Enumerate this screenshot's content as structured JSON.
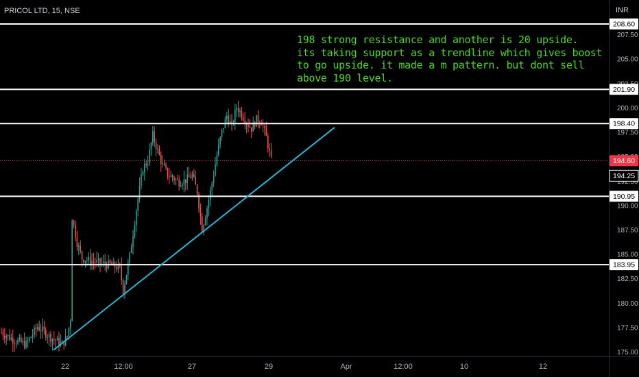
{
  "header": {
    "symbol": "PRICOL LTD, 15, NSE",
    "currency": "INR"
  },
  "note_lines": [
    "198 strong resistance and another is 20 upside.",
    "its taking support as a trendline which gives boost",
    "to go upside. it made a m pattern. but dont sell",
    "above 190 level."
  ],
  "colors": {
    "background": "#000000",
    "up": "#26a69a",
    "down": "#ef5350",
    "trendline": "#29b6d6",
    "level_line": "#ffffff",
    "note_text": "#4cd81f",
    "current_price": "#f23645"
  },
  "chart_data": {
    "type": "line",
    "title": "PRICOL LTD, 15, NSE",
    "ylabel": "INR",
    "ylim": [
      174.9,
      210.0
    ],
    "y_ticks": [
      "207.50",
      "205.00",
      "202.50",
      "200.00",
      "197.50",
      "195.00",
      "192.50",
      "190.00",
      "187.50",
      "185.00",
      "182.50",
      "180.00",
      "177.50",
      "175.00"
    ],
    "x_ticks": [
      "22",
      "12:00",
      "27",
      "29",
      "Apr",
      "12:00",
      "10",
      "12"
    ],
    "horizontal_levels": [
      {
        "value": 208.6,
        "label": "208.60"
      },
      {
        "value": 201.9,
        "label": "201.90"
      },
      {
        "value": 198.4,
        "label": "198.40"
      },
      {
        "value": 190.95,
        "label": "190.95"
      },
      {
        "value": 183.95,
        "label": "183.95"
      }
    ],
    "current_price": {
      "value": 194.6,
      "label": "194.60"
    },
    "secondary_price": {
      "value": 194.25,
      "label": "194.25"
    },
    "trendline": {
      "from": {
        "bar": 0,
        "price": 175.2
      },
      "to": {
        "bar": 160,
        "price": 198.0
      }
    },
    "price_path": [
      [
        0,
        177.0
      ],
      [
        8,
        176.2
      ],
      [
        15,
        175.8
      ],
      [
        22,
        177.6
      ],
      [
        30,
        176.5
      ],
      [
        37,
        175.8
      ],
      [
        40,
        176.6
      ],
      [
        42,
        178.4
      ],
      [
        43,
        188.8
      ],
      [
        46,
        186.2
      ],
      [
        49,
        184.6
      ],
      [
        55,
        184.3
      ],
      [
        60,
        184.1
      ],
      [
        66,
        183.9
      ],
      [
        72,
        183.6
      ],
      [
        74,
        181.3
      ],
      [
        78,
        184.8
      ],
      [
        82,
        189.6
      ],
      [
        86,
        193.8
      ],
      [
        89,
        194.6
      ],
      [
        92,
        197.2
      ],
      [
        95,
        195.6
      ],
      [
        98,
        194.1
      ],
      [
        101,
        193.2
      ],
      [
        104,
        192.9
      ],
      [
        108,
        192.4
      ],
      [
        112,
        192.6
      ],
      [
        116,
        193.1
      ],
      [
        119,
        191.4
      ],
      [
        122,
        187.6
      ],
      [
        125,
        189.8
      ],
      [
        128,
        192.3
      ],
      [
        131,
        195.2
      ],
      [
        134,
        197.6
      ],
      [
        137,
        199.2
      ],
      [
        140,
        198.1
      ],
      [
        143,
        200.1
      ],
      [
        146,
        199.4
      ],
      [
        149,
        198.5
      ],
      [
        152,
        197.9
      ],
      [
        155,
        198.8
      ],
      [
        158,
        198.6
      ],
      [
        161,
        197.0
      ],
      [
        164,
        194.6
      ]
    ]
  }
}
